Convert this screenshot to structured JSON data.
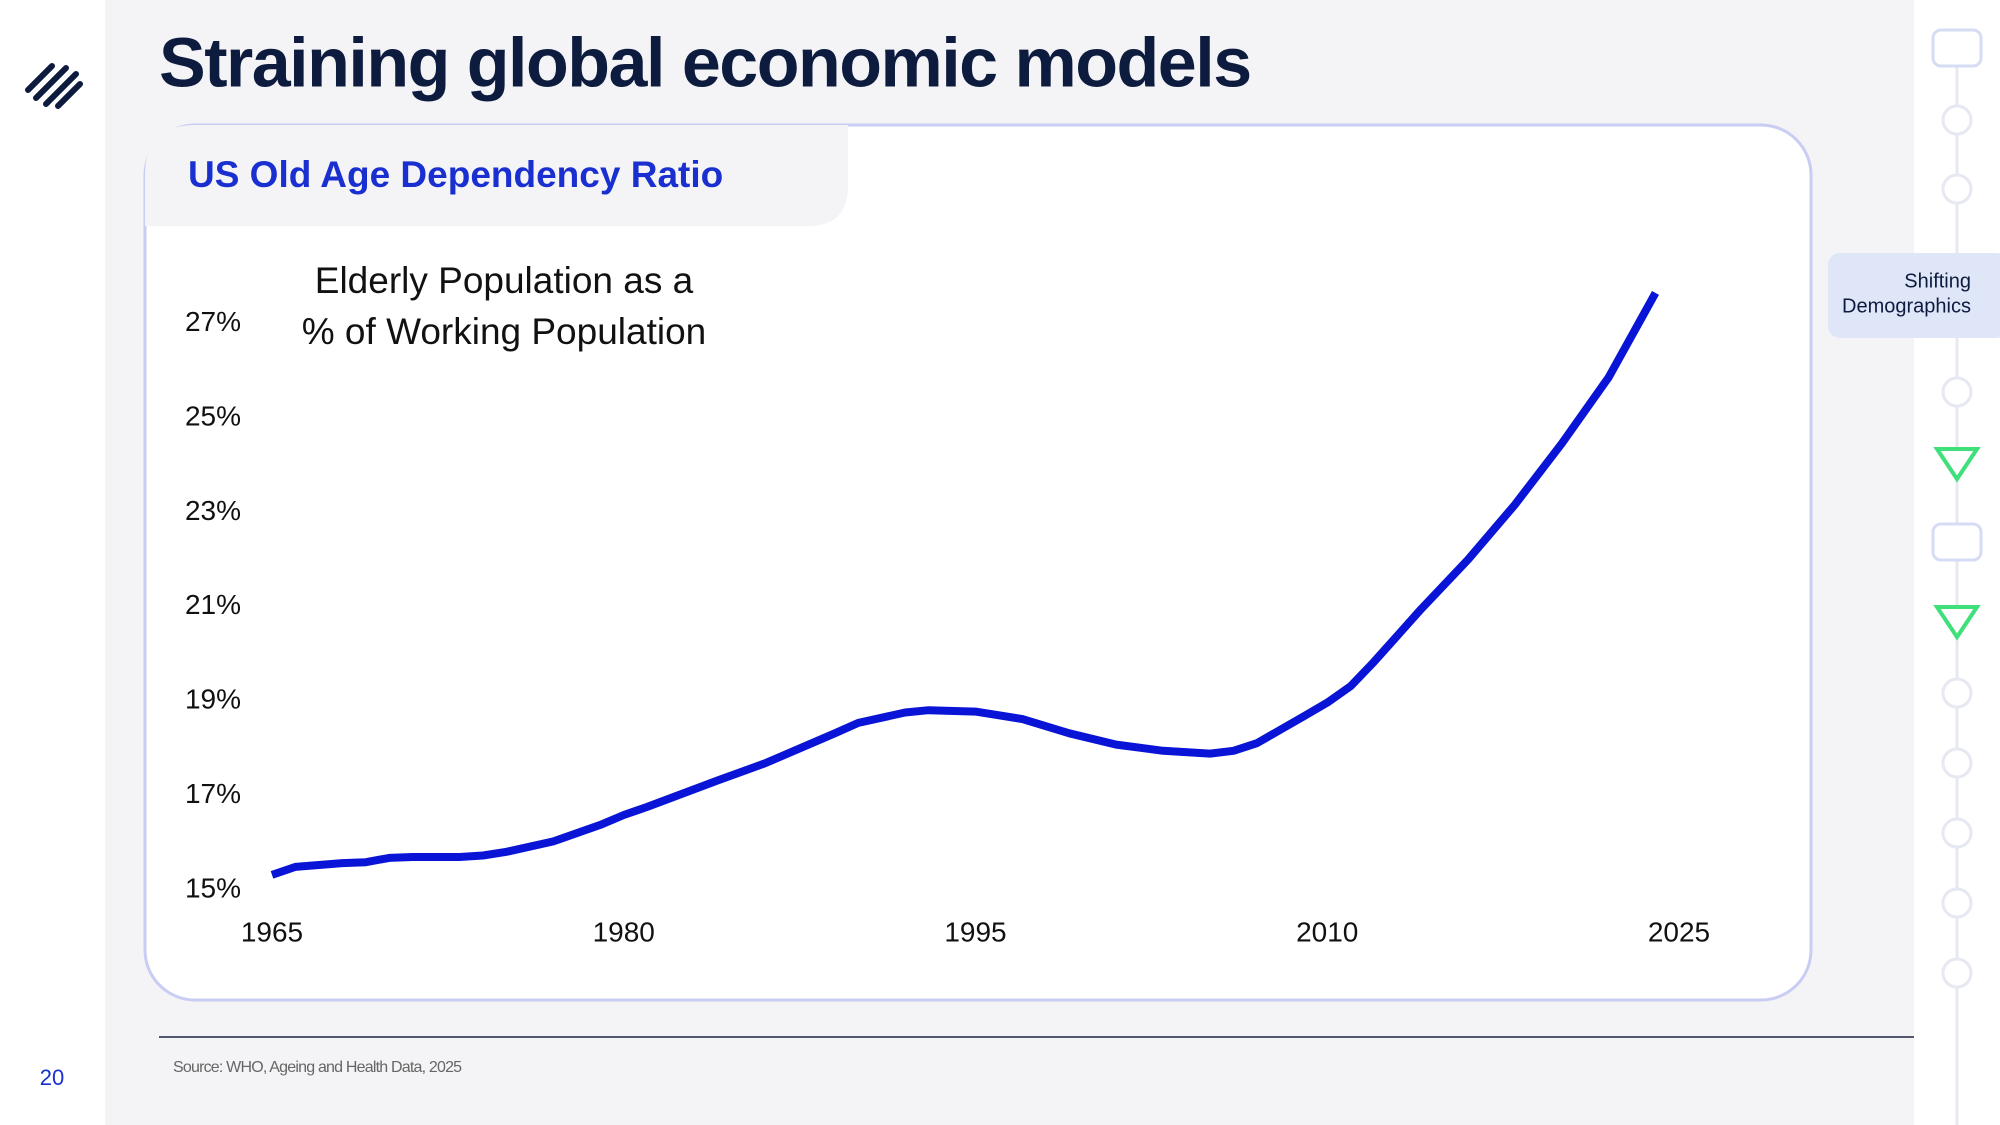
{
  "header": {
    "title": "Straining global economic models",
    "page_number": "20"
  },
  "source": "Source: WHO, Ageing and Health Data, 2025",
  "nav": {
    "active_section": [
      "Shifting",
      "Demographics"
    ]
  },
  "chart_data": {
    "type": "line",
    "title": "US Old Age Dependency Ratio",
    "annotation": [
      "Elderly Population as a",
      "% of Working Population"
    ],
    "x": [
      1965,
      1966,
      1968,
      1969,
      1970,
      1971,
      1973,
      1974,
      1975,
      1977,
      1979,
      1980,
      1981,
      1984,
      1986,
      1989,
      1990,
      1992,
      1993,
      1995,
      1997,
      1999,
      2001,
      2003,
      2005,
      2006,
      2007,
      2009,
      2010,
      2011,
      2012,
      2014,
      2016,
      2018,
      2020,
      2022,
      2024
    ],
    "values": [
      15.32,
      15.49,
      15.57,
      15.59,
      15.68,
      15.7,
      15.7,
      15.73,
      15.81,
      16.03,
      16.38,
      16.59,
      16.76,
      17.32,
      17.68,
      18.32,
      18.54,
      18.76,
      18.81,
      18.78,
      18.62,
      18.32,
      18.08,
      17.95,
      17.89,
      17.95,
      18.11,
      18.68,
      18.97,
      19.32,
      19.84,
      20.95,
      22.0,
      23.16,
      24.46,
      25.86,
      27.65
    ],
    "color": "#0a14d6",
    "xlim": [
      1965,
      2025
    ],
    "xticks": [
      1965,
      1980,
      1995,
      2010,
      2025
    ],
    "ylim": [
      15,
      28
    ],
    "yticks": [
      {
        "value": 15,
        "label": "15%"
      },
      {
        "value": 17,
        "label": "17%"
      },
      {
        "value": 19,
        "label": "19%"
      },
      {
        "value": 21,
        "label": "21%"
      },
      {
        "value": 23,
        "label": "23%"
      },
      {
        "value": 25,
        "label": "25%"
      },
      {
        "value": 27,
        "label": "27%"
      }
    ],
    "grid": false
  }
}
